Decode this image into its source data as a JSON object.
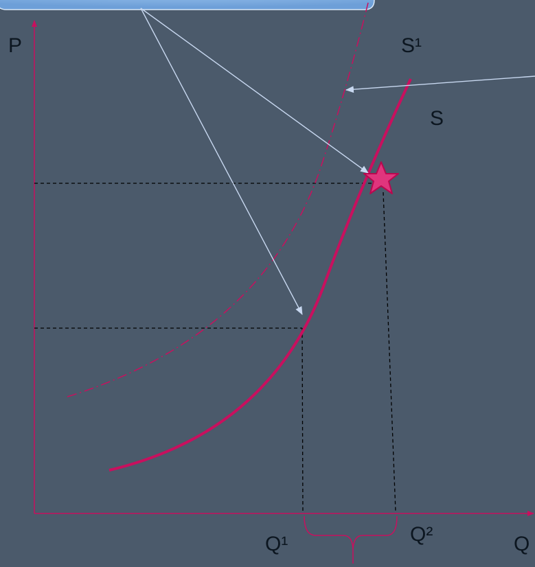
{
  "diagram": {
    "labels": {
      "p_axis": "P",
      "q_axis": "Q",
      "supply_shifted": "S¹",
      "supply": "S",
      "q1": "Q¹",
      "q2": "Q²"
    },
    "colors": {
      "background": "#4b5a6b",
      "supply_curve": "#c8105e",
      "axis": "#c8105e",
      "pointer_arrows": "#c8d8f0",
      "callout_box": "#8ab8ea",
      "guide_lines": "#000000",
      "text": "#0c1620"
    }
  }
}
